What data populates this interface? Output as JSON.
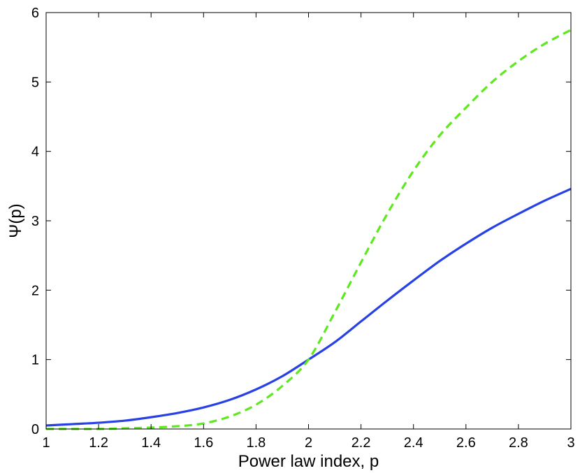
{
  "chart_data": {
    "type": "line",
    "title": "",
    "xlabel": "Power law index, p",
    "ylabel": "Ψ(p)",
    "xlim": [
      1,
      3
    ],
    "ylim": [
      0,
      6
    ],
    "xticks": [
      "1",
      "1.2",
      "1.4",
      "1.6",
      "1.8",
      "2",
      "2.2",
      "2.4",
      "2.6",
      "2.8",
      "3"
    ],
    "yticks": [
      "0",
      "1",
      "2",
      "3",
      "4",
      "5",
      "6"
    ],
    "grid": false,
    "legend": "none",
    "series": [
      {
        "style": "solid",
        "color": "#2841e6",
        "x": [
          1.0,
          1.1,
          1.2,
          1.3,
          1.4,
          1.5,
          1.6,
          1.7,
          1.8,
          1.9,
          2.0,
          2.1,
          2.2,
          2.3,
          2.4,
          2.5,
          2.6,
          2.7,
          2.8,
          2.9,
          3.0
        ],
        "values": [
          0.05,
          0.07,
          0.09,
          0.12,
          0.17,
          0.23,
          0.31,
          0.42,
          0.57,
          0.76,
          1.0,
          1.25,
          1.55,
          1.85,
          2.14,
          2.42,
          2.67,
          2.9,
          3.1,
          3.29,
          3.46
        ]
      },
      {
        "style": "dashed",
        "color": "#5ee81e",
        "x": [
          1.0,
          1.1,
          1.2,
          1.3,
          1.4,
          1.5,
          1.6,
          1.7,
          1.8,
          1.9,
          2.0,
          2.1,
          2.2,
          2.3,
          2.4,
          2.5,
          2.6,
          2.7,
          2.8,
          2.9,
          3.0
        ],
        "values": [
          0.0,
          0.0,
          0.0,
          0.01,
          0.02,
          0.04,
          0.08,
          0.18,
          0.35,
          0.62,
          1.0,
          1.68,
          2.4,
          3.1,
          3.72,
          4.23,
          4.63,
          5.0,
          5.3,
          5.55,
          5.75
        ]
      }
    ]
  }
}
